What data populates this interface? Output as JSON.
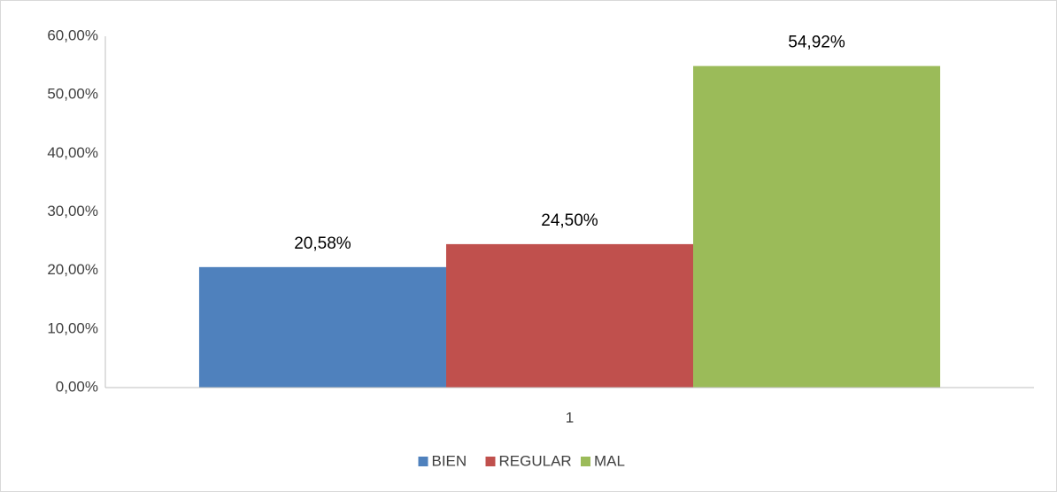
{
  "chart_data": {
    "type": "bar",
    "categories": [
      "1"
    ],
    "series": [
      {
        "name": "BIEN",
        "color": "#4f81bd",
        "values": [
          20.58
        ],
        "value_labels": [
          "20,58%"
        ]
      },
      {
        "name": "REGULAR",
        "color": "#c0504d",
        "values": [
          24.5
        ],
        "value_labels": [
          "24,50%"
        ]
      },
      {
        "name": "MAL",
        "color": "#9bbb59",
        "values": [
          54.92
        ],
        "value_labels": [
          "54,92%"
        ]
      }
    ],
    "ylim": [
      0,
      60
    ],
    "yticks": [
      {
        "value": 0,
        "label": "0,00%"
      },
      {
        "value": 10,
        "label": "10,00%"
      },
      {
        "value": 20,
        "label": "20,00%"
      },
      {
        "value": 30,
        "label": "30,00%"
      },
      {
        "value": 40,
        "label": "40,00%"
      },
      {
        "value": 50,
        "label": "50,00%"
      },
      {
        "value": 60,
        "label": "60,00%"
      }
    ],
    "grid": false,
    "legend": "bottom"
  }
}
